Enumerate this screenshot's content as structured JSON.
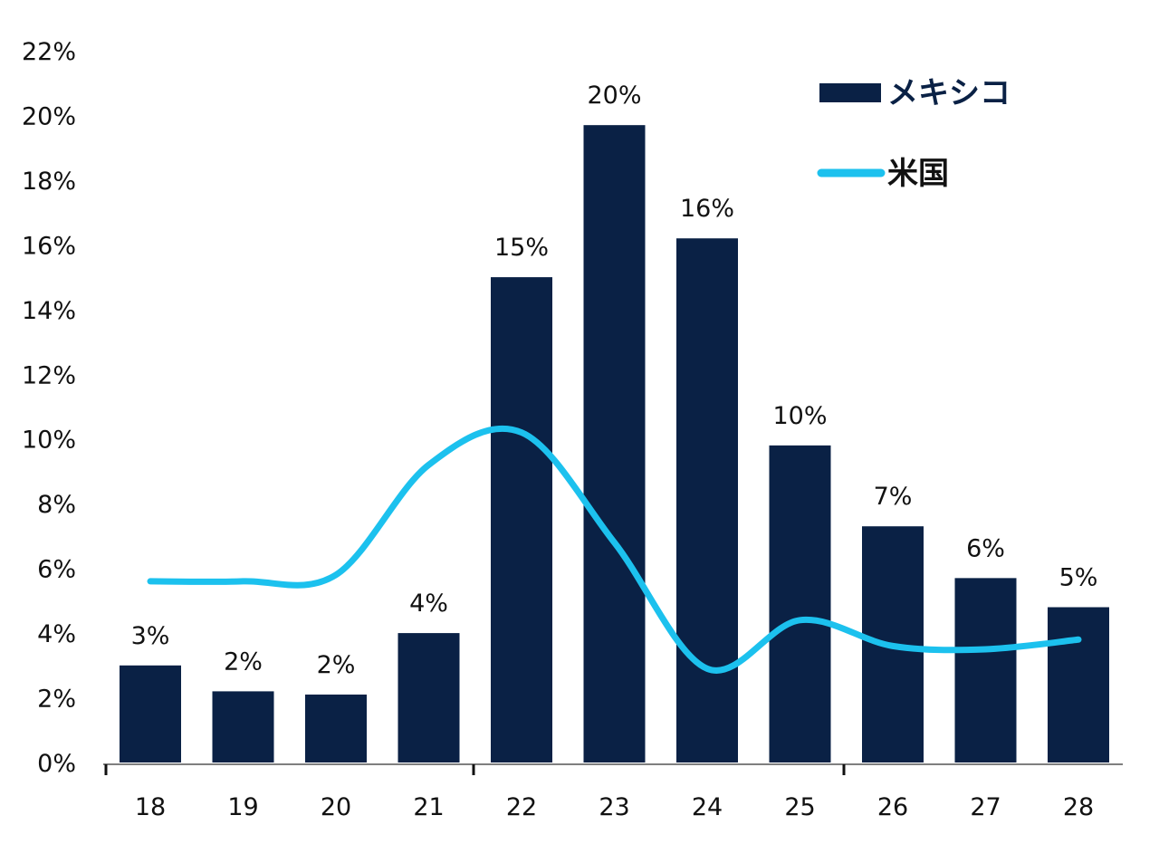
{
  "chart_data": {
    "type": "bar",
    "categories": [
      "18",
      "19",
      "20",
      "21",
      "22",
      "23",
      "24",
      "25",
      "26",
      "27",
      "28"
    ],
    "series": [
      {
        "name": "メキシコ",
        "type": "bar",
        "color": "#0a2145",
        "values": [
          3.0,
          2.2,
          2.1,
          4.0,
          15.0,
          19.7,
          16.2,
          9.8,
          7.3,
          5.7,
          4.8
        ],
        "labels": [
          "3%",
          "2%",
          "2%",
          "4%",
          "15%",
          "20%",
          "16%",
          "10%",
          "7%",
          "6%",
          "5%"
        ]
      },
      {
        "name": "米国",
        "type": "line",
        "color": "#1cc1ee",
        "values": [
          5.6,
          5.6,
          5.8,
          9.2,
          10.2,
          6.8,
          2.9,
          4.4,
          3.6,
          3.5,
          3.8
        ]
      }
    ],
    "ylim": [
      0,
      22
    ],
    "yticks": [
      "0%",
      "2%",
      "4%",
      "6%",
      "8%",
      "10%",
      "12%",
      "14%",
      "16%",
      "18%",
      "20%",
      "22%"
    ],
    "xlabel": "",
    "ylabel": "",
    "title": "",
    "grid": false,
    "legend_position": "top-right"
  }
}
